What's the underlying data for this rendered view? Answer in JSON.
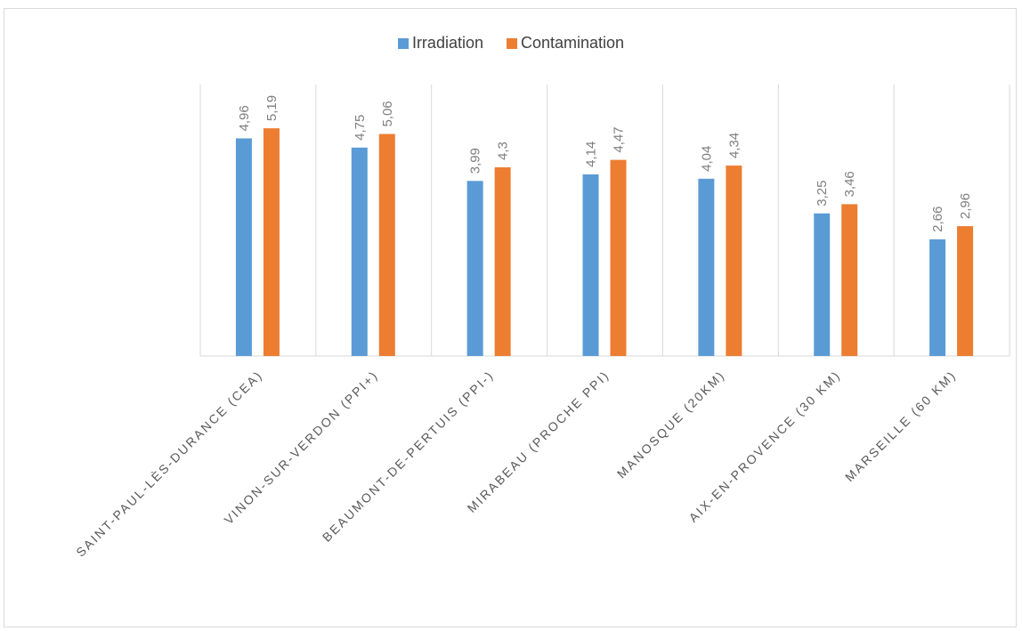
{
  "chart_data": {
    "type": "bar",
    "categories": [
      "SAINT-PAUL-LÈS-DURANCE (CEA)",
      "VINON-SUR-VERDON (PPI+)",
      "BEAUMONT-DE-PERTUIS (PPI-)",
      "MIRABEAU (PROCHE PPI)",
      "MANOSQUE (20KM)",
      "AIX-EN-PROVENCE (30 KM)",
      "MARSEILLE (60 KM)"
    ],
    "series": [
      {
        "name": "Irradiation",
        "color": "#5b9bd5",
        "values": [
          4.96,
          4.75,
          3.99,
          4.14,
          4.04,
          3.25,
          2.66
        ],
        "labels": [
          "4,96",
          "4,75",
          "3,99",
          "4,14",
          "4,04",
          "3,25",
          "2,66"
        ]
      },
      {
        "name": "Contamination",
        "color": "#ed7d31",
        "values": [
          5.19,
          5.06,
          4.3,
          4.47,
          4.34,
          3.46,
          2.96
        ],
        "labels": [
          "5,19",
          "5,06",
          "4,3",
          "4,47",
          "4,34",
          "3,46",
          "2,96"
        ]
      }
    ],
    "ylim": [
      0,
      6
    ],
    "grid": "vertical category separators",
    "legend_position": "top-center"
  }
}
